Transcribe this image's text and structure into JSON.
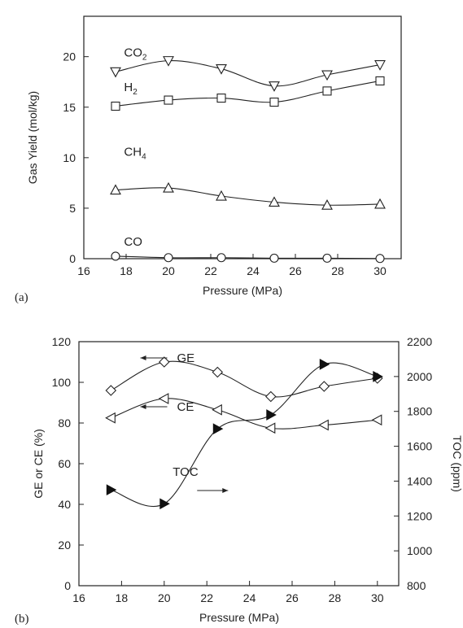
{
  "chart_data": [
    {
      "type": "line",
      "panel_label": "(a)",
      "xlabel": "Pressure (MPa)",
      "ylabel": "Gas Yield (mol/kg)",
      "xlim": [
        16,
        31
      ],
      "ylim": [
        0,
        24
      ],
      "xticks": [
        16,
        18,
        20,
        22,
        24,
        26,
        28,
        30
      ],
      "yticks": [
        0,
        5,
        10,
        15,
        20
      ],
      "grid": false,
      "legend": "none",
      "x": [
        17.5,
        20,
        22.5,
        25,
        27.5,
        30
      ],
      "series": [
        {
          "name": "CO",
          "sub": "2",
          "label_text": "CO",
          "marker": "triangle-down",
          "values": [
            18.5,
            19.6,
            18.8,
            17.1,
            18.2,
            19.2
          ],
          "label_at": [
            17.9,
            20.0
          ]
        },
        {
          "name": "H",
          "sub": "2",
          "label_text": "H",
          "marker": "square",
          "values": [
            15.1,
            15.7,
            15.9,
            15.5,
            16.6,
            17.6
          ],
          "label_at": [
            17.9,
            16.6
          ]
        },
        {
          "name": "CH",
          "sub": "4",
          "label_text": "CH",
          "marker": "triangle-up",
          "values": [
            6.8,
            7.0,
            6.2,
            5.6,
            5.3,
            5.4
          ],
          "label_at": [
            17.9,
            10.2
          ]
        },
        {
          "name": "CO",
          "sub": "",
          "label_text": "CO",
          "marker": "circle",
          "values": [
            0.25,
            0.1,
            0.1,
            0.05,
            0.05,
            0.02
          ],
          "label_at": [
            17.9,
            1.3
          ]
        }
      ]
    },
    {
      "type": "line",
      "panel_label": "(b)",
      "xlabel": "Pressure (MPa)",
      "ylabel": "GE or CE (%)",
      "y2label": "TOC (ppm)",
      "xlim": [
        16,
        31
      ],
      "ylim": [
        0,
        120
      ],
      "y2lim": [
        800,
        2200
      ],
      "xticks": [
        16,
        18,
        20,
        22,
        24,
        26,
        28,
        30
      ],
      "yticks": [
        0,
        20,
        40,
        60,
        80,
        100,
        120
      ],
      "y2ticks": [
        800,
        1000,
        1200,
        1400,
        1600,
        1800,
        2000,
        2200
      ],
      "grid": false,
      "legend": "none",
      "x": [
        17.5,
        20,
        22.5,
        25,
        27.5,
        30
      ],
      "series": [
        {
          "name": "GE",
          "axis": "left",
          "marker": "diamond",
          "values": [
            96,
            110,
            105,
            93,
            98,
            102
          ],
          "label_at": [
            20.6,
            110
          ]
        },
        {
          "name": "CE",
          "axis": "left",
          "marker": "triangle-left",
          "values": [
            82.5,
            92,
            86.5,
            77.5,
            79,
            81.5
          ],
          "label_at": [
            20.6,
            86
          ]
        },
        {
          "name": "TOC",
          "axis": "right",
          "marker": "triangle-right-filled",
          "values": [
            1350,
            1270,
            1700,
            1780,
            2070,
            2000
          ],
          "label_at": [
            20.4,
            1430
          ]
        }
      ]
    }
  ]
}
